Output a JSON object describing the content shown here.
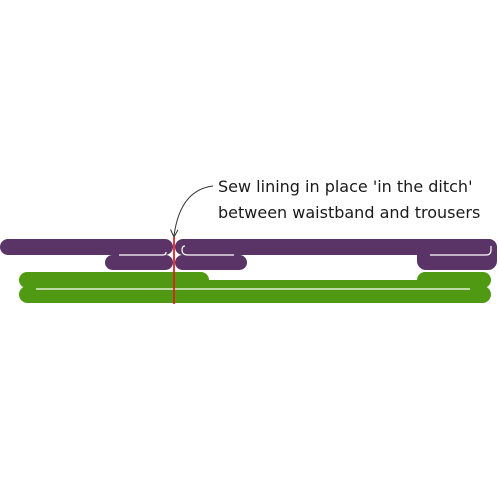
{
  "annotation": {
    "line1": "Sew lining in place 'in the ditch'",
    "line2": "between waistband and trousers"
  },
  "colors": {
    "waistband": "#5a3466",
    "lining": "#4f9a12",
    "stitch": "#e02020",
    "fold_line": "#ffffff",
    "arrow": "#333333",
    "text": "#1a1a1a"
  }
}
